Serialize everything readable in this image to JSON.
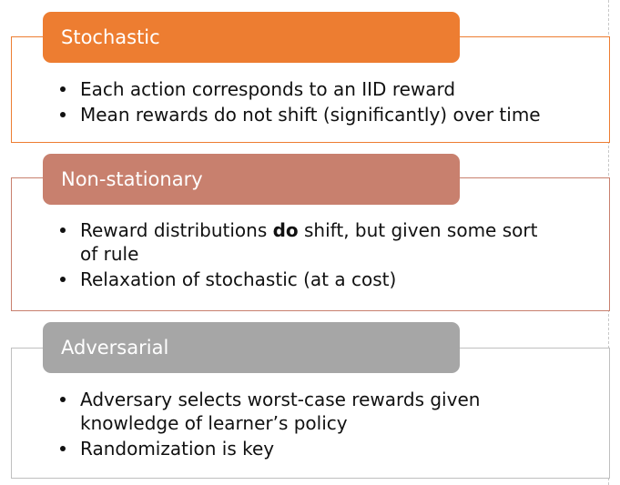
{
  "colors": {
    "stochastic": "#ED7D31",
    "nonstationary": "#C8806E",
    "adversarial": "#A6A6A6"
  },
  "sections": [
    {
      "title": "Stochastic",
      "bullets": [
        "Each action corresponds to an IID reward",
        "Mean rewards do not shift (significantly) over time"
      ]
    },
    {
      "title": "Non-stationary",
      "bullets": [
        {
          "pre": "Reward distributions ",
          "bold": "do",
          "post": " shift, but given some sort of rule"
        },
        "Relaxation of stochastic (at a cost)"
      ]
    },
    {
      "title": "Adversarial",
      "bullets": [
        "Adversary selects worst-case rewards given knowledge of learner’s policy",
        "Randomization is key"
      ]
    }
  ]
}
